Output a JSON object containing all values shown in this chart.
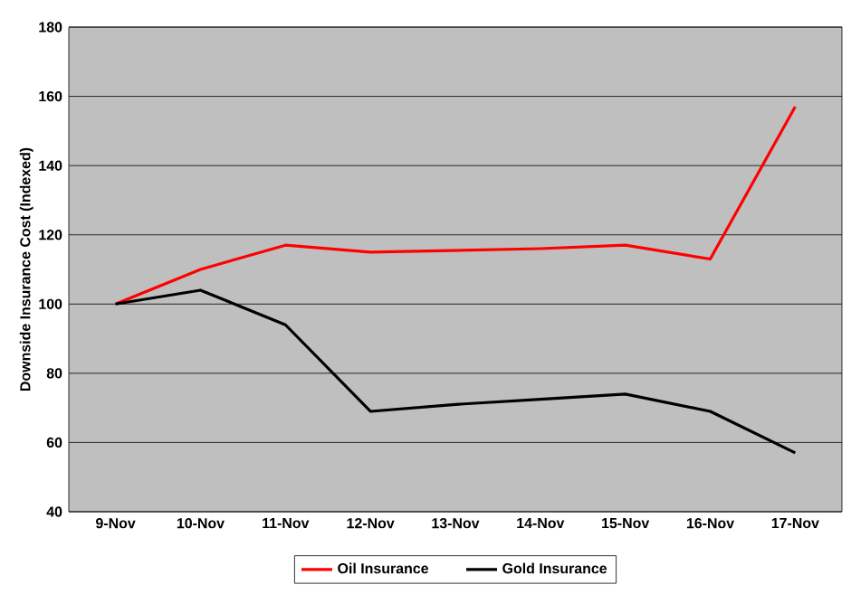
{
  "chart_data": {
    "type": "line",
    "ylabel": "Downside Insurance Cost (Indexed)",
    "categories": [
      "9-Nov",
      "10-Nov",
      "11-Nov",
      "12-Nov",
      "13-Nov",
      "14-Nov",
      "15-Nov",
      "16-Nov",
      "17-Nov"
    ],
    "series": [
      {
        "name": "Oil Insurance",
        "color": "#ff0000",
        "values": [
          100,
          110,
          117,
          115,
          115.5,
          116,
          117,
          113,
          157
        ]
      },
      {
        "name": "Gold Insurance",
        "color": "#000000",
        "values": [
          100,
          104,
          94,
          69,
          71,
          72.5,
          74,
          69,
          57
        ]
      }
    ],
    "ylim": [
      40,
      180
    ],
    "yticks": [
      40,
      60,
      80,
      100,
      120,
      140,
      160,
      180
    ],
    "grid": "y",
    "legend": "bottom",
    "marker": "none",
    "line_style": "solid"
  }
}
